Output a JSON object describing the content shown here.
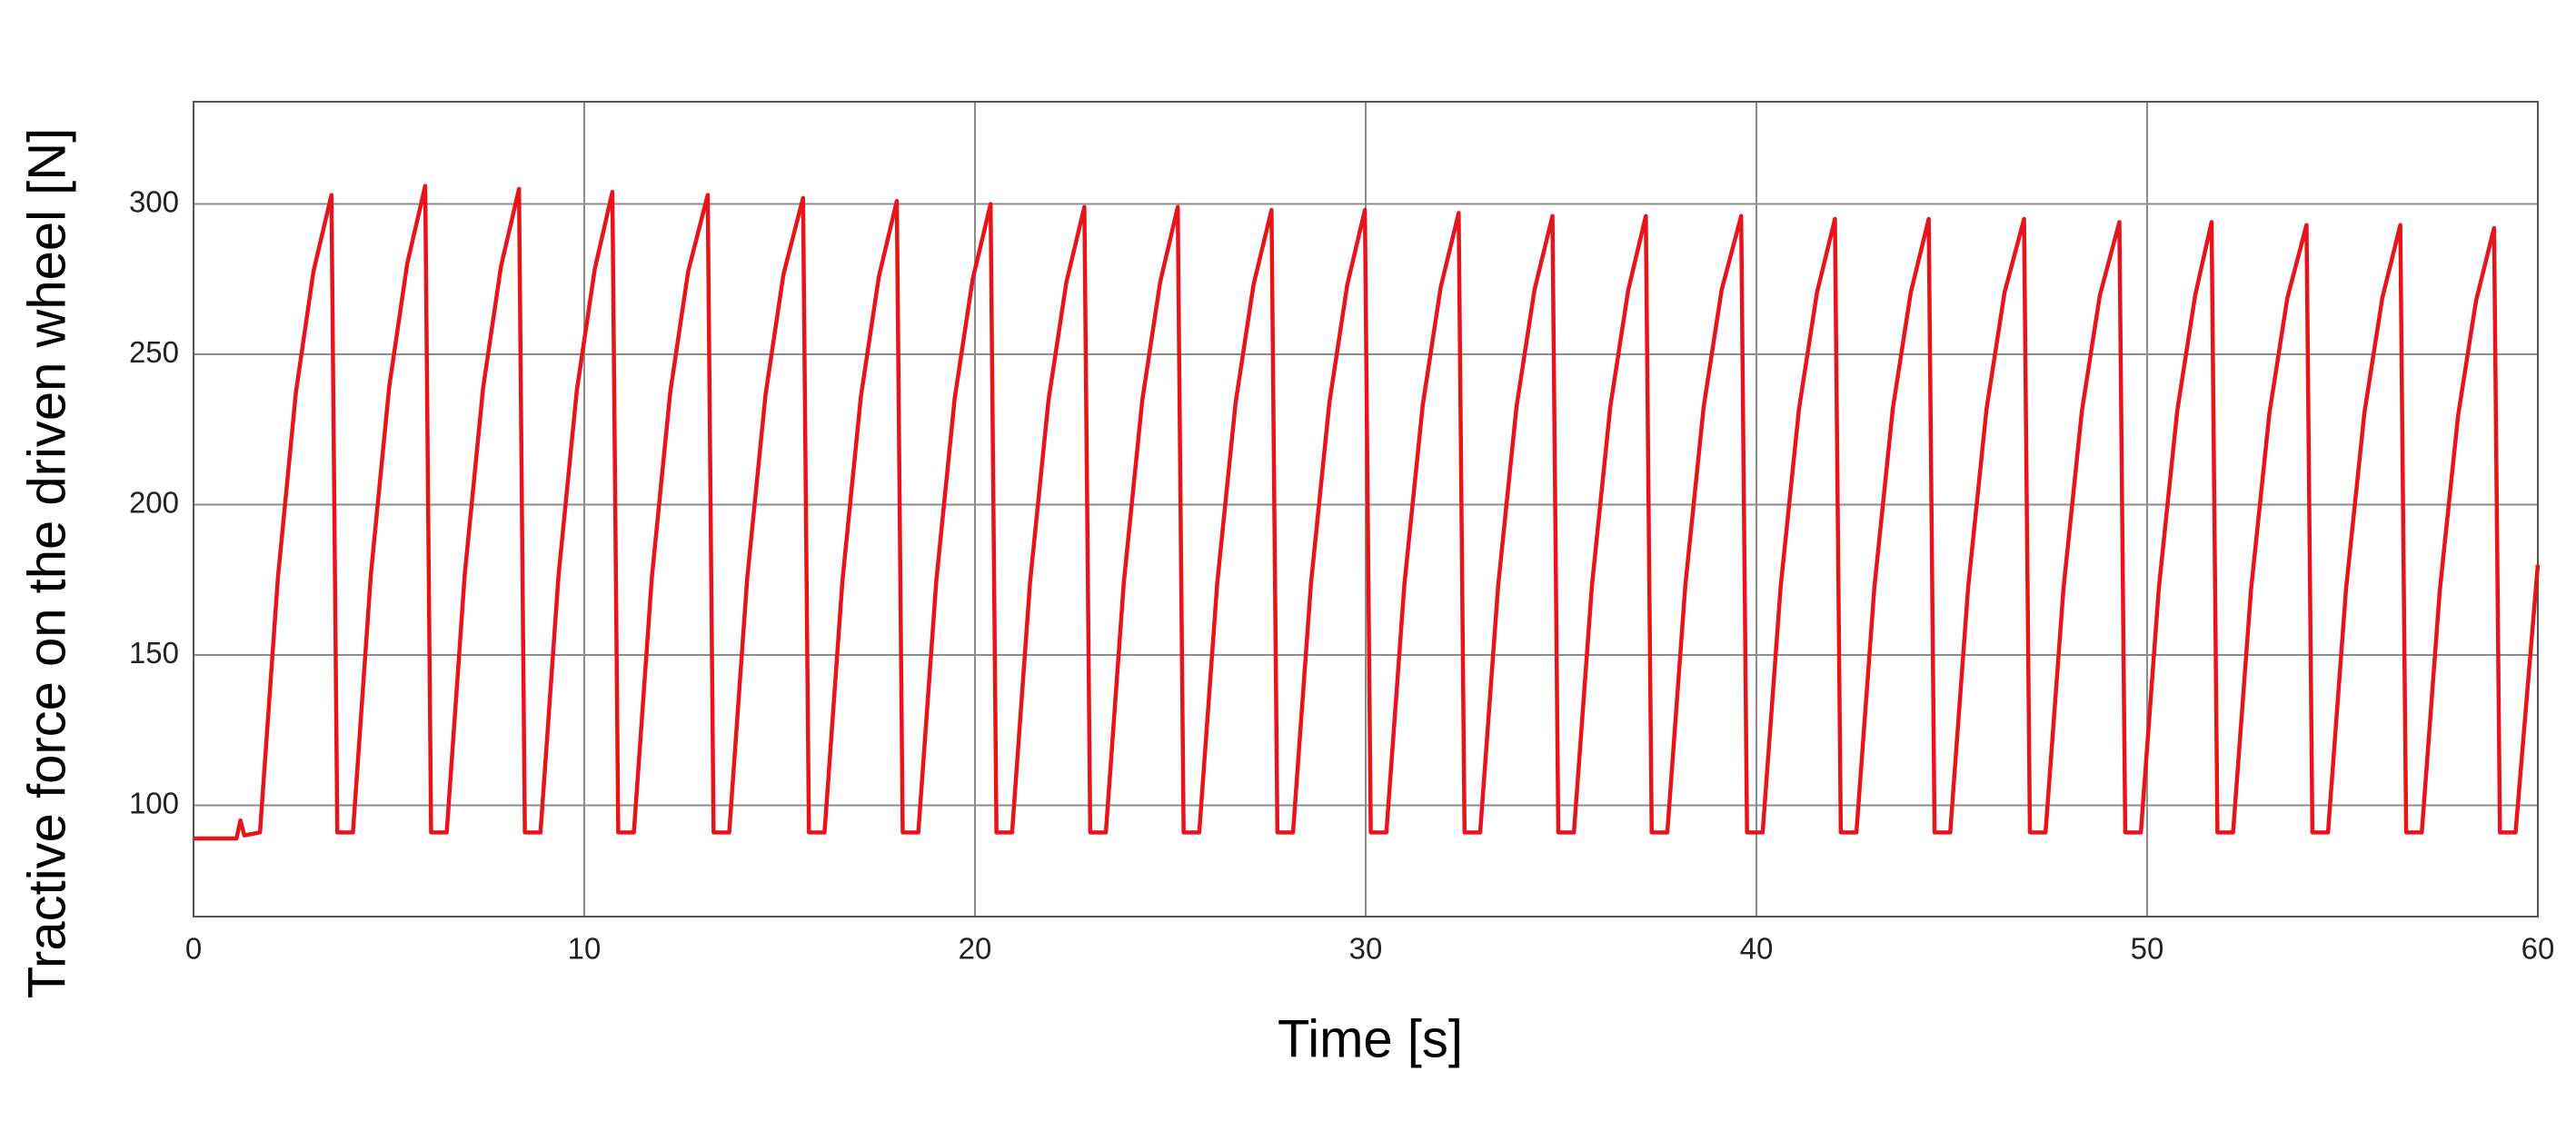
{
  "chart_data": {
    "type": "line",
    "xlabel": "Time [s]",
    "ylabel": "Tractive force on the driven wheel [N]",
    "xlim": [
      0,
      60
    ],
    "ylim": [
      63,
      334
    ],
    "xticks": [
      0,
      10,
      20,
      30,
      40,
      50,
      60
    ],
    "yticks": [
      100,
      150,
      200,
      250,
      300
    ],
    "grid": true,
    "series": [
      {
        "color": "#e8141b",
        "x": [
          0,
          1.1,
          1.2,
          1.3,
          1.7,
          2.16,
          2.62,
          3.07,
          3.53,
          3.68,
          4.08,
          4.54,
          5.01,
          5.47,
          5.93,
          6.08,
          6.48,
          6.94,
          7.41,
          7.87,
          8.33,
          8.48,
          8.88,
          9.34,
          9.81,
          10.27,
          10.72,
          10.87,
          11.27,
          11.73,
          12.2,
          12.66,
          13.16,
          13.31,
          13.71,
          14.17,
          14.64,
          15.1,
          15.6,
          15.75,
          16.15,
          16.61,
          17.08,
          17.54,
          18.0,
          18.15,
          18.55,
          19.01,
          19.48,
          19.94,
          20.4,
          20.55,
          20.95,
          21.41,
          21.88,
          22.34,
          22.8,
          22.95,
          23.35,
          23.81,
          24.28,
          24.74,
          25.19,
          25.34,
          25.74,
          26.2,
          26.67,
          27.13,
          27.59,
          27.74,
          28.14,
          28.6,
          29.07,
          29.53,
          29.98,
          30.13,
          30.53,
          30.99,
          31.46,
          31.92,
          32.38,
          32.53,
          32.93,
          33.39,
          33.86,
          34.32,
          34.78,
          34.93,
          35.33,
          35.79,
          36.26,
          36.72,
          37.17,
          37.32,
          37.72,
          38.18,
          38.65,
          39.11,
          39.61,
          39.76,
          40.16,
          40.62,
          41.09,
          41.55,
          42.01,
          42.16,
          42.56,
          43.02,
          43.49,
          43.95,
          44.41,
          44.56,
          44.96,
          45.42,
          45.89,
          46.35,
          46.85,
          47.0,
          47.4,
          47.86,
          48.33,
          48.79,
          49.29,
          49.44,
          49.84,
          50.3,
          50.77,
          51.23,
          51.65,
          51.8,
          52.2,
          52.66,
          53.13,
          53.59,
          54.08,
          54.23,
          54.63,
          55.09,
          55.56,
          56.02,
          56.48,
          56.63,
          57.03,
          57.49,
          57.96,
          58.42,
          58.88,
          59.03,
          59.43,
          60
        ],
        "values": [
          89,
          89,
          95,
          90,
          91,
          175.8,
          237.3,
          277.6,
          303,
          91,
          91,
          177,
          239.4,
          280.2,
          306,
          91,
          91,
          176.6,
          238.7,
          279.3,
          305,
          91,
          91,
          176.2,
          238,
          278.4,
          304,
          91,
          91,
          175.8,
          237.3,
          277.6,
          303,
          91,
          91,
          175.4,
          236.6,
          276.7,
          302,
          91,
          91,
          175,
          235.9,
          275.8,
          301,
          91,
          91,
          174.6,
          235.2,
          274.9,
          300,
          91,
          91,
          174.2,
          234.5,
          274,
          299,
          91,
          91,
          174.2,
          234.5,
          274,
          299,
          91,
          91,
          173.8,
          233.8,
          273.2,
          298,
          91,
          91,
          173.8,
          233.8,
          273.2,
          298,
          91,
          91,
          173.4,
          233.1,
          272.3,
          297,
          91,
          91,
          173,
          232.5,
          271.4,
          296,
          91,
          91,
          173,
          232.5,
          271.4,
          296,
          91,
          91,
          173,
          232.5,
          271.4,
          296,
          91,
          91,
          172.6,
          231.8,
          270.5,
          295,
          91,
          91,
          172.6,
          231.8,
          270.5,
          295,
          91,
          91,
          172.6,
          231.8,
          270.5,
          295,
          91,
          91,
          172.2,
          231.1,
          269.6,
          294,
          91,
          91,
          172.2,
          231.1,
          269.6,
          294,
          91,
          91,
          171.8,
          230.4,
          268.8,
          293,
          91,
          91,
          171.8,
          230.4,
          268.8,
          293,
          91,
          91,
          171.4,
          229.7,
          267.9,
          292,
          91,
          91,
          180
        ]
      }
    ]
  }
}
